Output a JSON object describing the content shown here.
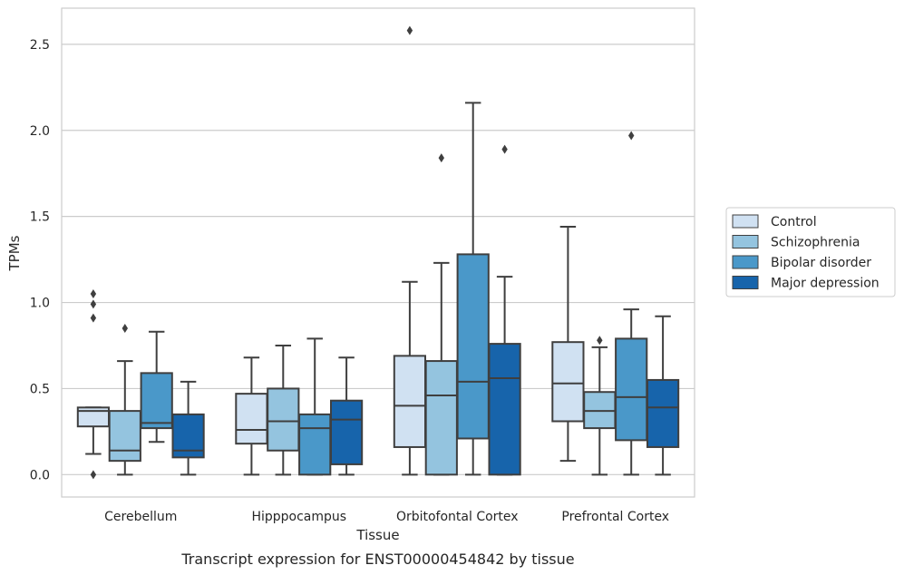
{
  "chart_data": {
    "type": "box",
    "caption": "Transcript expression for ENST00000454842 by tissue",
    "xlabel": "Tissue",
    "ylabel": "TPMs",
    "ylim": [
      -0.13,
      2.71
    ],
    "yticks": [
      "0.0",
      "0.5",
      "1.0",
      "1.5",
      "2.0",
      "2.5"
    ],
    "grid": true,
    "legend_position": "right",
    "categories": [
      "Cerebellum",
      "Hipppocampus",
      "Orbitofontal Cortex",
      "Prefrontal Cortex"
    ],
    "series": [
      {
        "name": "Control",
        "color": "#d0e1f2",
        "boxes": [
          {
            "whislo": 0.12,
            "q1": 0.28,
            "med": 0.37,
            "q3": 0.39,
            "whishi": 0.39,
            "fliers": [
              0.0,
              0.91,
              0.99,
              1.05
            ]
          },
          {
            "whislo": 0.0,
            "q1": 0.18,
            "med": 0.26,
            "q3": 0.47,
            "whishi": 0.68,
            "fliers": []
          },
          {
            "whislo": 0.0,
            "q1": 0.16,
            "med": 0.4,
            "q3": 0.69,
            "whishi": 1.12,
            "fliers": [
              2.58
            ]
          },
          {
            "whislo": 0.08,
            "q1": 0.31,
            "med": 0.53,
            "q3": 0.77,
            "whishi": 1.44,
            "fliers": []
          }
        ]
      },
      {
        "name": "Schizophrenia",
        "color": "#94c4df",
        "boxes": [
          {
            "whislo": 0.0,
            "q1": 0.08,
            "med": 0.14,
            "q3": 0.37,
            "whishi": 0.66,
            "fliers": [
              0.85
            ]
          },
          {
            "whislo": 0.0,
            "q1": 0.14,
            "med": 0.31,
            "q3": 0.5,
            "whishi": 0.75,
            "fliers": []
          },
          {
            "whislo": 0.0,
            "q1": 0.0,
            "med": 0.46,
            "q3": 0.66,
            "whishi": 1.23,
            "fliers": [
              1.84
            ]
          },
          {
            "whislo": 0.0,
            "q1": 0.27,
            "med": 0.37,
            "q3": 0.48,
            "whishi": 0.74,
            "fliers": [
              0.78
            ]
          }
        ]
      },
      {
        "name": "Bipolar disorder",
        "color": "#4a98c9",
        "boxes": [
          {
            "whislo": 0.19,
            "q1": 0.27,
            "med": 0.3,
            "q3": 0.59,
            "whishi": 0.83,
            "fliers": []
          },
          {
            "whislo": 0.0,
            "q1": 0.0,
            "med": 0.27,
            "q3": 0.35,
            "whishi": 0.79,
            "fliers": []
          },
          {
            "whislo": 0.0,
            "q1": 0.21,
            "med": 0.54,
            "q3": 1.28,
            "whishi": 2.16,
            "fliers": []
          },
          {
            "whislo": 0.0,
            "q1": 0.2,
            "med": 0.45,
            "q3": 0.79,
            "whishi": 0.96,
            "fliers": [
              1.97
            ]
          }
        ]
      },
      {
        "name": "Major depression",
        "color": "#1764ab",
        "boxes": [
          {
            "whislo": 0.0,
            "q1": 0.1,
            "med": 0.14,
            "q3": 0.35,
            "whishi": 0.54,
            "fliers": []
          },
          {
            "whislo": 0.0,
            "q1": 0.06,
            "med": 0.32,
            "q3": 0.43,
            "whishi": 0.68,
            "fliers": []
          },
          {
            "whislo": 0.0,
            "q1": 0.0,
            "med": 0.56,
            "q3": 0.76,
            "whishi": 1.15,
            "fliers": [
              1.89
            ]
          },
          {
            "whislo": 0.0,
            "q1": 0.16,
            "med": 0.39,
            "q3": 0.55,
            "whishi": 0.92,
            "fliers": []
          }
        ]
      }
    ]
  }
}
